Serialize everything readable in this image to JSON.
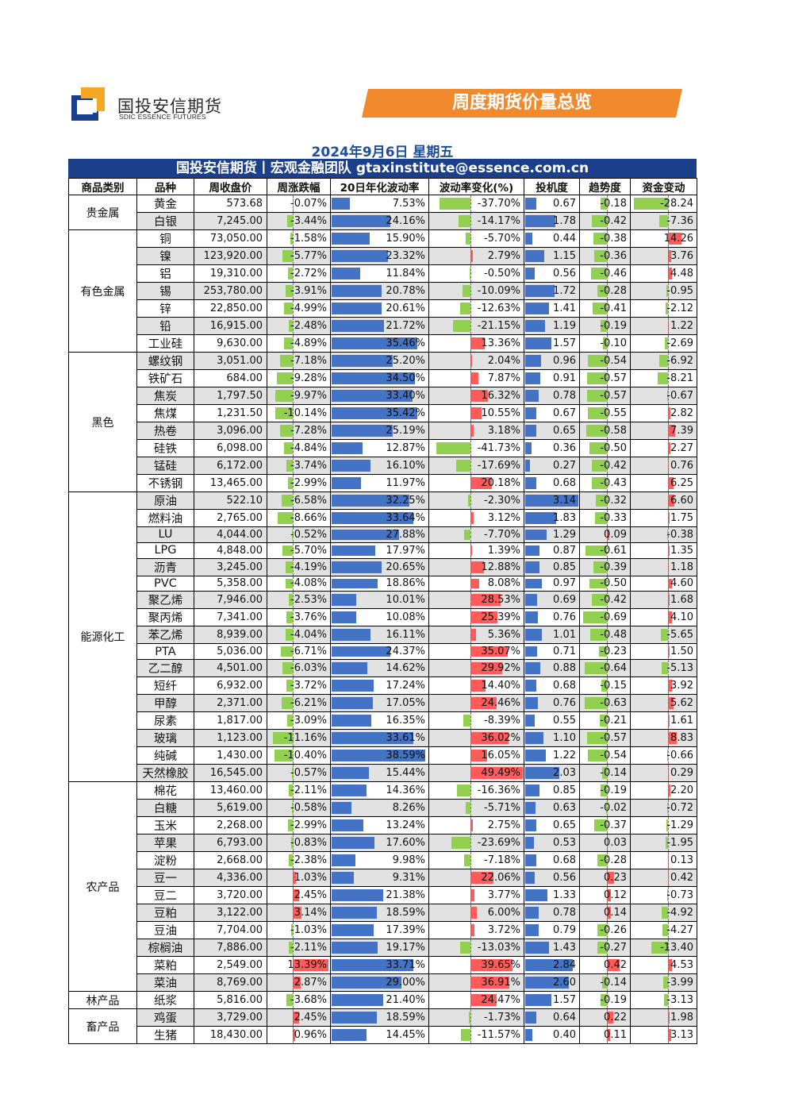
{
  "logo": {
    "name": "国投安信期货",
    "sub": "SDIC ESSENCE FUTURES"
  },
  "title": "周度期货价量总览",
  "date": "2024年9月6日 星期五",
  "banner": "国投安信期货丨宏观金融团队 gtaxinstitute@essence.com.cn",
  "colors": {
    "header": "#1c3f8c",
    "accent": "#f08a2c",
    "bar_blue": "#4472c4",
    "bar_green": "#92d050",
    "bar_red": "#ff5b5b"
  },
  "headers": [
    "商品类别",
    "品种",
    "周收盘价",
    "周涨跌幅",
    "20日年化波动率",
    "波动率变化(%)",
    "投机度",
    "趋势度",
    "资金变动"
  ],
  "groups": [
    {
      "category": "贵金属",
      "rows": [
        [
          "黄金",
          "573.68",
          "-0.07%",
          "7.53%",
          "-37.70%",
          "0.67",
          "-0.18",
          "-28.24"
        ],
        [
          "白银",
          "7,245.00",
          "-3.44%",
          "24.16%",
          "-14.17%",
          "1.78",
          "-0.42",
          "-7.36"
        ]
      ]
    },
    {
      "category": "有色金属",
      "rows": [
        [
          "铜",
          "73,050.00",
          "-1.58%",
          "15.90%",
          "-5.70%",
          "0.44",
          "-0.38",
          "14.26"
        ],
        [
          "镍",
          "123,920.00",
          "-5.77%",
          "23.32%",
          "2.79%",
          "1.15",
          "-0.36",
          "3.76"
        ],
        [
          "铝",
          "19,310.00",
          "-2.72%",
          "11.84%",
          "-0.50%",
          "0.56",
          "-0.46",
          "4.48"
        ],
        [
          "锡",
          "253,780.00",
          "-3.91%",
          "20.78%",
          "-10.09%",
          "1.72",
          "-0.28",
          "-0.95"
        ],
        [
          "锌",
          "22,850.00",
          "-4.99%",
          "20.61%",
          "-12.63%",
          "1.41",
          "-0.41",
          "-2.12"
        ],
        [
          "铅",
          "16,915.00",
          "-2.48%",
          "21.72%",
          "-21.15%",
          "1.19",
          "-0.19",
          "1.22"
        ],
        [
          "工业硅",
          "9,630.00",
          "-4.89%",
          "35.46%",
          "13.36%",
          "1.57",
          "-0.10",
          "-2.69"
        ]
      ]
    },
    {
      "category": "黑色",
      "rows": [
        [
          "螺纹钢",
          "3,051.00",
          "-7.18%",
          "25.20%",
          "2.04%",
          "0.96",
          "-0.54",
          "-6.92"
        ],
        [
          "铁矿石",
          "684.00",
          "-9.28%",
          "34.50%",
          "7.87%",
          "0.91",
          "-0.57",
          "-8.21"
        ],
        [
          "焦炭",
          "1,797.50",
          "-9.97%",
          "33.40%",
          "16.32%",
          "0.78",
          "-0.57",
          "-0.67"
        ],
        [
          "焦煤",
          "1,231.50",
          "-10.14%",
          "35.42%",
          "10.55%",
          "0.67",
          "-0.55",
          "2.82"
        ],
        [
          "热卷",
          "3,096.00",
          "-7.28%",
          "25.19%",
          "3.18%",
          "0.65",
          "-0.58",
          "7.39"
        ],
        [
          "硅铁",
          "6,098.00",
          "-4.84%",
          "12.87%",
          "-41.73%",
          "0.36",
          "-0.50",
          "2.27"
        ],
        [
          "锰硅",
          "6,172.00",
          "-3.74%",
          "16.10%",
          "-17.69%",
          "0.27",
          "-0.42",
          "0.76"
        ],
        [
          "不锈钢",
          "13,465.00",
          "-2.99%",
          "11.97%",
          "20.18%",
          "0.68",
          "-0.43",
          "6.25"
        ]
      ]
    },
    {
      "category": "能源化工",
      "rows": [
        [
          "原油",
          "522.10",
          "-6.58%",
          "32.25%",
          "-2.30%",
          "3.14",
          "-0.32",
          "6.60"
        ],
        [
          "燃料油",
          "2,765.00",
          "-8.66%",
          "33.64%",
          "3.12%",
          "1.83",
          "-0.33",
          "1.75"
        ],
        [
          "LU",
          "4,044.00",
          "-0.52%",
          "27.88%",
          "-7.70%",
          "1.29",
          "0.09",
          "-0.38"
        ],
        [
          "LPG",
          "4,848.00",
          "-5.70%",
          "17.97%",
          "1.39%",
          "0.87",
          "-0.61",
          "1.35"
        ],
        [
          "沥青",
          "3,245.00",
          "-4.19%",
          "20.65%",
          "12.88%",
          "0.85",
          "-0.39",
          "1.18"
        ],
        [
          "PVC",
          "5,358.00",
          "-4.08%",
          "18.86%",
          "8.08%",
          "0.97",
          "-0.50",
          "4.60"
        ],
        [
          "聚乙烯",
          "7,946.00",
          "-2.53%",
          "10.01%",
          "28.53%",
          "0.69",
          "-0.42",
          "1.68"
        ],
        [
          "聚丙烯",
          "7,341.00",
          "-3.76%",
          "10.08%",
          "25.39%",
          "0.76",
          "-0.69",
          "4.10"
        ],
        [
          "苯乙烯",
          "8,939.00",
          "-4.04%",
          "16.11%",
          "5.36%",
          "1.01",
          "-0.48",
          "-5.65"
        ],
        [
          "PTA",
          "5,036.00",
          "-6.71%",
          "24.37%",
          "35.07%",
          "0.71",
          "-0.23",
          "1.50"
        ],
        [
          "乙二醇",
          "4,501.00",
          "-6.03%",
          "14.62%",
          "29.92%",
          "0.88",
          "-0.64",
          "-5.13"
        ],
        [
          "短纤",
          "6,932.00",
          "-3.72%",
          "17.24%",
          "14.40%",
          "0.68",
          "-0.15",
          "3.92"
        ],
        [
          "甲醇",
          "2,371.00",
          "-6.21%",
          "17.05%",
          "24.46%",
          "0.76",
          "-0.63",
          "5.62"
        ],
        [
          "尿素",
          "1,817.00",
          "-3.09%",
          "16.35%",
          "-8.39%",
          "0.55",
          "-0.21",
          "1.61"
        ],
        [
          "玻璃",
          "1,123.00",
          "-11.16%",
          "33.61%",
          "36.02%",
          "1.10",
          "-0.57",
          "8.83"
        ],
        [
          "纯碱",
          "1,430.00",
          "-10.40%",
          "38.59%",
          "16.05%",
          "1.22",
          "-0.54",
          "-0.66"
        ],
        [
          "天然橡胶",
          "16,545.00",
          "-0.57%",
          "15.44%",
          "49.49%",
          "2.03",
          "-0.14",
          "0.29"
        ]
      ]
    },
    {
      "category": "农产品",
      "rows": [
        [
          "棉花",
          "13,460.00",
          "-2.11%",
          "14.36%",
          "-16.36%",
          "0.85",
          "-0.19",
          "2.20"
        ],
        [
          "白糖",
          "5,619.00",
          "-0.58%",
          "8.26%",
          "-5.71%",
          "0.63",
          "-0.02",
          "-0.72"
        ],
        [
          "玉米",
          "2,268.00",
          "-2.99%",
          "13.24%",
          "2.75%",
          "0.65",
          "-0.37",
          "-1.29"
        ],
        [
          "苹果",
          "6,793.00",
          "-0.83%",
          "17.60%",
          "-23.69%",
          "0.53",
          "0.03",
          "-1.95"
        ],
        [
          "淀粉",
          "2,668.00",
          "-2.38%",
          "9.98%",
          "-7.18%",
          "0.68",
          "-0.28",
          "0.13"
        ],
        [
          "豆一",
          "4,336.00",
          "1.03%",
          "9.31%",
          "22.06%",
          "0.56",
          "0.23",
          "0.42"
        ],
        [
          "豆二",
          "3,720.00",
          "2.45%",
          "21.38%",
          "3.77%",
          "1.33",
          "0.12",
          "-0.73"
        ],
        [
          "豆粕",
          "3,122.00",
          "3.14%",
          "18.59%",
          "6.00%",
          "0.78",
          "0.14",
          "-4.92"
        ],
        [
          "豆油",
          "7,704.00",
          "-1.03%",
          "17.39%",
          "3.72%",
          "0.79",
          "-0.26",
          "-4.27"
        ],
        [
          "棕榈油",
          "7,886.00",
          "-2.11%",
          "19.17%",
          "-13.03%",
          "1.43",
          "-0.27",
          "-13.40"
        ],
        [
          "菜粕",
          "2,549.00",
          "13.39%",
          "33.71%",
          "39.65%",
          "2.84",
          "0.42",
          "4.53"
        ],
        [
          "菜油",
          "8,769.00",
          "2.87%",
          "29.00%",
          "36.91%",
          "2.60",
          "-0.14",
          "-3.99"
        ]
      ]
    },
    {
      "category": "林产品",
      "rows": [
        [
          "纸浆",
          "5,816.00",
          "-3.68%",
          "21.40%",
          "24.47%",
          "1.57",
          "-0.19",
          "-3.13"
        ]
      ]
    },
    {
      "category": "畜产品",
      "rows": [
        [
          "鸡蛋",
          "3,729.00",
          "2.45%",
          "18.59%",
          "-1.73%",
          "0.64",
          "0.22",
          "1.98"
        ],
        [
          "生猪",
          "18,430.00",
          "0.96%",
          "14.45%",
          "-11.57%",
          "0.40",
          "0.11",
          "3.13"
        ]
      ]
    }
  ]
}
